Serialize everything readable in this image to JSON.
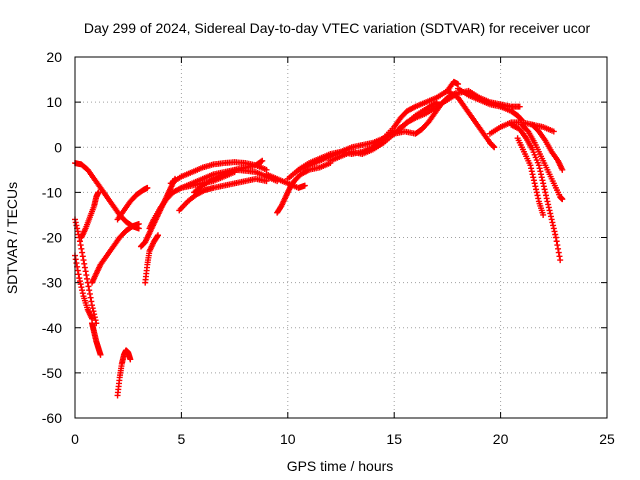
{
  "chart_data": {
    "type": "scatter",
    "title": "Day 299 of 2024, Sidereal Day-to-day VTEC variation (SDTVAR) for receiver ucor",
    "xlabel": "GPS time / hours",
    "ylabel": "SDTVAR / TECUs",
    "xlim": [
      0,
      25
    ],
    "ylim": [
      -60,
      20
    ],
    "xticks": [
      "0",
      "5",
      "10",
      "15",
      "20",
      "25"
    ],
    "yticks": [
      "-60",
      "-50",
      "-40",
      "-30",
      "-20",
      "-10",
      "0",
      "10",
      "20"
    ],
    "grid": true,
    "marker": "plus",
    "color": "#ff0000",
    "series": [
      {
        "points": [
          [
            0.0,
            -3.5
          ],
          [
            0.3,
            -3.8
          ],
          [
            0.6,
            -5
          ],
          [
            0.9,
            -7
          ],
          [
            1.2,
            -9
          ],
          [
            1.5,
            -11
          ],
          [
            1.8,
            -13
          ],
          [
            2.1,
            -15
          ],
          [
            2.4,
            -16.5
          ],
          [
            2.7,
            -17.5
          ],
          [
            3.0,
            -18
          ]
        ]
      },
      {
        "points": [
          [
            0.0,
            -16
          ],
          [
            0.2,
            -20
          ],
          [
            0.4,
            -25
          ],
          [
            0.6,
            -30
          ],
          [
            0.8,
            -35
          ],
          [
            1.0,
            -39
          ]
        ]
      },
      {
        "points": [
          [
            0.0,
            -24
          ],
          [
            0.2,
            -29
          ],
          [
            0.4,
            -33
          ],
          [
            0.6,
            -36
          ],
          [
            0.8,
            -38
          ]
        ]
      },
      {
        "points": [
          [
            0.8,
            -39
          ],
          [
            0.9,
            -41
          ],
          [
            1.0,
            -43
          ],
          [
            1.1,
            -44.5
          ],
          [
            1.2,
            -46
          ]
        ]
      },
      {
        "points": [
          [
            0.8,
            -30
          ],
          [
            1.0,
            -28
          ],
          [
            1.2,
            -26
          ],
          [
            1.5,
            -24
          ],
          [
            1.8,
            -22
          ],
          [
            2.1,
            -20
          ],
          [
            2.4,
            -18.5
          ],
          [
            2.7,
            -17.5
          ],
          [
            3.0,
            -17
          ]
        ]
      },
      {
        "points": [
          [
            0.3,
            -20
          ],
          [
            0.5,
            -18
          ],
          [
            0.7,
            -15.5
          ],
          [
            0.9,
            -13
          ],
          [
            1.0,
            -11
          ],
          [
            1.1,
            -10
          ]
        ]
      },
      {
        "points": [
          [
            2.0,
            -16
          ],
          [
            2.3,
            -14
          ],
          [
            2.6,
            -12
          ],
          [
            2.9,
            -10.5
          ],
          [
            3.2,
            -9.5
          ],
          [
            3.4,
            -9
          ]
        ]
      },
      {
        "points": [
          [
            2.0,
            -55
          ],
          [
            2.1,
            -51
          ],
          [
            2.2,
            -48
          ],
          [
            2.3,
            -46
          ],
          [
            2.4,
            -45
          ],
          [
            2.5,
            -45.5
          ],
          [
            2.6,
            -47
          ]
        ]
      },
      {
        "points": [
          [
            3.3,
            -30
          ],
          [
            3.4,
            -26
          ],
          [
            3.5,
            -23
          ],
          [
            3.7,
            -21
          ],
          [
            3.9,
            -19.5
          ]
        ]
      },
      {
        "points": [
          [
            3.1,
            -22
          ],
          [
            3.3,
            -21
          ],
          [
            3.5,
            -19
          ],
          [
            3.7,
            -17
          ],
          [
            3.9,
            -15
          ],
          [
            4.1,
            -13
          ],
          [
            4.3,
            -11
          ],
          [
            4.5,
            -9
          ],
          [
            4.7,
            -7
          ]
        ]
      },
      {
        "points": [
          [
            3.5,
            -18
          ],
          [
            3.7,
            -16
          ],
          [
            4.0,
            -13.5
          ],
          [
            4.3,
            -11.5
          ],
          [
            4.6,
            -10
          ],
          [
            5.0,
            -9
          ],
          [
            5.5,
            -8.5
          ],
          [
            6.0,
            -8
          ],
          [
            6.5,
            -7.5
          ],
          [
            7.0,
            -6.5
          ],
          [
            7.5,
            -5.5
          ]
        ]
      },
      {
        "points": [
          [
            4.5,
            -8
          ],
          [
            5.0,
            -6.5
          ],
          [
            5.5,
            -5.5
          ],
          [
            6.0,
            -4.5
          ],
          [
            6.5,
            -3.8
          ],
          [
            7.0,
            -3.5
          ],
          [
            7.5,
            -3.3
          ],
          [
            8.0,
            -3.5
          ],
          [
            8.5,
            -4
          ],
          [
            9.0,
            -5
          ]
        ]
      },
      {
        "points": [
          [
            5.0,
            -9
          ],
          [
            5.5,
            -8
          ],
          [
            6.0,
            -7
          ],
          [
            6.5,
            -6
          ],
          [
            7.0,
            -5.5
          ],
          [
            7.5,
            -5
          ],
          [
            8.0,
            -5.2
          ],
          [
            8.5,
            -5.5
          ],
          [
            9.0,
            -6.5
          ],
          [
            9.5,
            -7.5
          ]
        ]
      },
      {
        "points": [
          [
            4.9,
            -14
          ],
          [
            5.3,
            -12
          ],
          [
            5.7,
            -10.5
          ],
          [
            6.1,
            -9.5
          ],
          [
            6.5,
            -9
          ],
          [
            7.0,
            -8.5
          ],
          [
            7.5,
            -8
          ],
          [
            8.0,
            -7.5
          ],
          [
            8.5,
            -7
          ],
          [
            9.0,
            -7.5
          ]
        ]
      },
      {
        "points": [
          [
            5.6,
            -10
          ],
          [
            6.0,
            -8.5
          ],
          [
            6.5,
            -7
          ],
          [
            7.0,
            -6
          ],
          [
            7.5,
            -5
          ],
          [
            8.0,
            -4.5
          ],
          [
            8.5,
            -4
          ],
          [
            8.8,
            -3
          ]
        ]
      },
      {
        "points": [
          [
            9.5,
            -14.5
          ],
          [
            9.7,
            -13
          ],
          [
            9.9,
            -11
          ],
          [
            10.1,
            -9
          ],
          [
            10.3,
            -7.5
          ],
          [
            10.6,
            -6
          ],
          [
            11.0,
            -5
          ],
          [
            11.5,
            -4.5
          ],
          [
            12.0,
            -3.5
          ]
        ]
      },
      {
        "points": [
          [
            9.0,
            -6
          ],
          [
            9.5,
            -7
          ],
          [
            10.0,
            -8
          ],
          [
            10.5,
            -9
          ],
          [
            10.8,
            -8.5
          ]
        ]
      },
      {
        "points": [
          [
            10.0,
            -7
          ],
          [
            10.5,
            -5
          ],
          [
            11.0,
            -3.5
          ],
          [
            11.5,
            -2.5
          ],
          [
            12.0,
            -1.5
          ],
          [
            12.5,
            -1
          ],
          [
            13.0,
            -1.5
          ],
          [
            13.5,
            -1
          ],
          [
            14.0,
            0
          ]
        ]
      },
      {
        "points": [
          [
            10.5,
            -5
          ],
          [
            11.0,
            -4
          ],
          [
            11.5,
            -3
          ],
          [
            12.0,
            -2
          ],
          [
            12.5,
            -1
          ],
          [
            13.0,
            0
          ],
          [
            13.5,
            0.5
          ],
          [
            14.0,
            1
          ],
          [
            14.5,
            2
          ],
          [
            15.0,
            3.5
          ]
        ]
      },
      {
        "points": [
          [
            12.0,
            -3
          ],
          [
            12.5,
            -2
          ],
          [
            13.0,
            -1
          ],
          [
            13.5,
            -1.5
          ],
          [
            14.0,
            -0.5
          ],
          [
            14.5,
            1
          ],
          [
            15.0,
            3
          ],
          [
            15.5,
            5
          ],
          [
            16.0,
            7
          ],
          [
            16.5,
            8.5
          ],
          [
            17.0,
            10
          ]
        ]
      },
      {
        "points": [
          [
            14.0,
            0
          ],
          [
            14.5,
            2
          ],
          [
            15.0,
            4.5
          ],
          [
            15.3,
            6.5
          ],
          [
            15.6,
            8
          ],
          [
            16.0,
            9
          ],
          [
            16.5,
            10
          ],
          [
            17.0,
            11
          ],
          [
            17.5,
            12.5
          ],
          [
            17.8,
            14.5
          ],
          [
            18.0,
            14
          ]
        ]
      },
      {
        "points": [
          [
            15.2,
            4
          ],
          [
            15.6,
            5.5
          ],
          [
            16.0,
            6.5
          ],
          [
            16.5,
            7.5
          ],
          [
            17.0,
            9
          ],
          [
            17.5,
            10.5
          ],
          [
            18.0,
            12
          ],
          [
            18.5,
            12.5
          ],
          [
            19.0,
            11
          ],
          [
            19.5,
            10
          ],
          [
            20.0,
            9.5
          ],
          [
            20.5,
            9
          ],
          [
            20.9,
            9
          ]
        ]
      },
      {
        "points": [
          [
            15.0,
            3
          ],
          [
            15.5,
            3.5
          ],
          [
            16.0,
            3
          ],
          [
            16.3,
            4
          ],
          [
            16.6,
            5.5
          ],
          [
            16.9,
            7.5
          ],
          [
            17.2,
            9.5
          ],
          [
            17.5,
            11
          ],
          [
            17.9,
            12
          ]
        ]
      },
      {
        "points": [
          [
            17.5,
            12.5
          ],
          [
            18.0,
            11
          ],
          [
            18.3,
            9
          ],
          [
            18.6,
            7
          ],
          [
            18.9,
            5
          ],
          [
            19.2,
            3
          ],
          [
            19.5,
            1
          ],
          [
            19.7,
            0
          ]
        ]
      },
      {
        "points": [
          [
            18.0,
            13
          ],
          [
            18.5,
            11.5
          ],
          [
            19.0,
            10.5
          ],
          [
            19.5,
            9.5
          ],
          [
            20.0,
            9
          ],
          [
            20.5,
            8
          ],
          [
            20.8,
            7
          ],
          [
            21.0,
            6
          ]
        ]
      },
      {
        "points": [
          [
            19.5,
            3
          ],
          [
            20.0,
            4.5
          ],
          [
            20.5,
            5.5
          ],
          [
            21.0,
            5.5
          ],
          [
            21.5,
            5
          ],
          [
            22.0,
            4.5
          ],
          [
            22.5,
            3.5
          ]
        ]
      },
      {
        "points": [
          [
            20.5,
            5
          ],
          [
            20.9,
            4
          ],
          [
            21.2,
            2
          ],
          [
            21.5,
            -0.5
          ],
          [
            21.8,
            -4
          ],
          [
            22.0,
            -8
          ],
          [
            22.2,
            -12
          ],
          [
            22.4,
            -16
          ],
          [
            22.6,
            -20
          ],
          [
            22.8,
            -25
          ]
        ]
      },
      {
        "points": [
          [
            20.8,
            2
          ],
          [
            21.1,
            -1
          ],
          [
            21.4,
            -4
          ],
          [
            21.6,
            -8
          ],
          [
            21.8,
            -12
          ],
          [
            22.0,
            -15
          ]
        ]
      },
      {
        "points": [
          [
            21.0,
            5
          ],
          [
            21.3,
            3.5
          ],
          [
            21.6,
            1
          ],
          [
            21.9,
            -2
          ],
          [
            22.2,
            -5
          ],
          [
            22.5,
            -8
          ],
          [
            22.8,
            -11
          ],
          [
            22.9,
            -11.5
          ]
        ]
      },
      {
        "points": [
          [
            21.5,
            5
          ],
          [
            21.8,
            3.5
          ],
          [
            22.1,
            1.5
          ],
          [
            22.4,
            -1
          ],
          [
            22.7,
            -3
          ],
          [
            22.9,
            -5
          ]
        ]
      }
    ]
  }
}
